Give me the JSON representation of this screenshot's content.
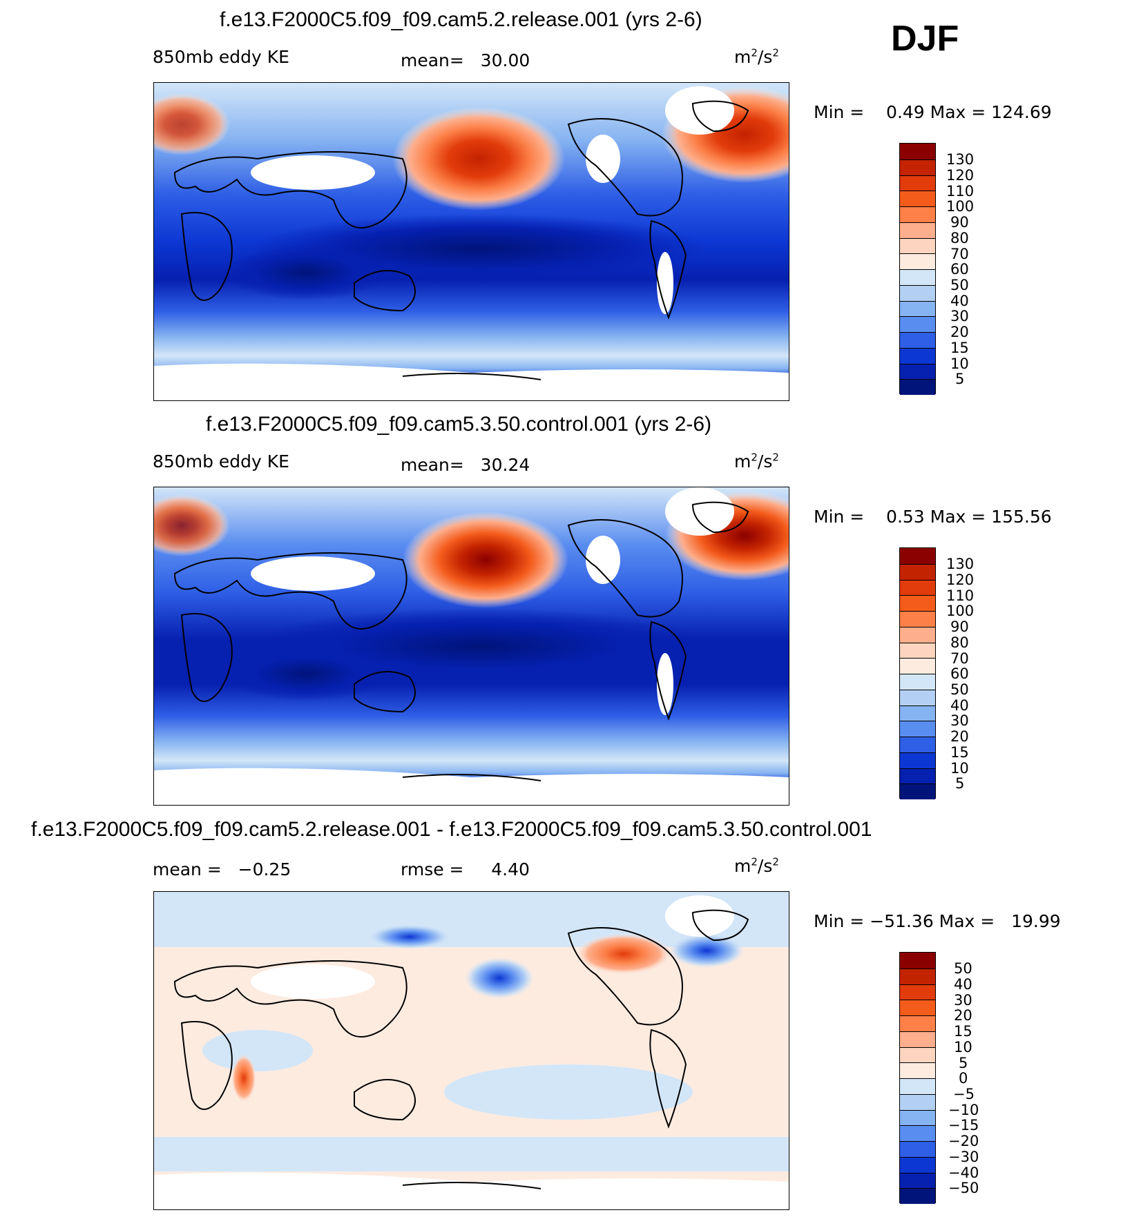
{
  "season": "DJF",
  "panels": [
    {
      "title": "f.e13.F2000C5.f09_f09.cam5.2.release.001 (yrs 2-6)",
      "left_label": "850mb eddy KE",
      "mid_label": "mean=   30.00",
      "units_base": "m",
      "units_sup1": "2",
      "units_mid": "/s",
      "units_sup2": "2",
      "minmax": "Min =    0.49 Max = 124.69",
      "colorbar_labels": [
        "130",
        "120",
        "110",
        "100",
        "90",
        "80",
        "70",
        "60",
        "50",
        "40",
        "30",
        "20",
        "15",
        "10",
        "5"
      ]
    },
    {
      "title": "f.e13.F2000C5.f09_f09.cam5.3.50.control.001 (yrs 2-6)",
      "left_label": "850mb eddy KE",
      "mid_label": "mean=   30.24",
      "units_base": "m",
      "units_sup1": "2",
      "units_mid": "/s",
      "units_sup2": "2",
      "minmax": "Min =    0.53 Max = 155.56",
      "colorbar_labels": [
        "130",
        "120",
        "110",
        "100",
        "90",
        "80",
        "70",
        "60",
        "50",
        "40",
        "30",
        "20",
        "15",
        "10",
        "5"
      ]
    },
    {
      "title": "f.e13.F2000C5.f09_f09.cam5.2.release.001 - f.e13.F2000C5.f09_f09.cam5.3.50.control.001",
      "left_label": "mean =   −0.25",
      "mid_label": "rmse =     4.40",
      "units_base": "m",
      "units_sup1": "2",
      "units_mid": "/s",
      "units_sup2": "2",
      "minmax": "Min = −51.36 Max =   19.99",
      "colorbar_labels": [
        "50",
        "40",
        "30",
        "20",
        "15",
        "10",
        "5",
        "0",
        "−5",
        "−10",
        "−15",
        "−20",
        "−30",
        "−40",
        "−50"
      ]
    }
  ],
  "colors": {
    "abs_scale": [
      "#8b0000",
      "#c42300",
      "#e23c0c",
      "#f45c1c",
      "#fc8048",
      "#fdae8c",
      "#fcd4bf",
      "#fdebe0",
      "#d3e6f8",
      "#b3d0f4",
      "#86b3f1",
      "#5a8df0",
      "#2f5fe6",
      "#0d37d3",
      "#0620b0",
      "#00147a"
    ],
    "diff_scale": [
      "#8b0000",
      "#c42300",
      "#e23c0c",
      "#f45c1c",
      "#fc8048",
      "#fdae8c",
      "#fcd4bf",
      "#fdebe0",
      "#d3e6f8",
      "#b3d0f4",
      "#86b3f1",
      "#5a8df0",
      "#2f5fe6",
      "#0d37d3",
      "#0620b0",
      "#00147a"
    ]
  },
  "chart_data": [
    {
      "type": "heatmap",
      "title": "f.e13.F2000C5.f09_f09.cam5.2.release.001 (yrs 2-6)",
      "variable": "850mb eddy KE",
      "units": "m2/s2",
      "mean": 30.0,
      "min": 0.49,
      "max": 124.69,
      "contour_levels": [
        5,
        10,
        15,
        20,
        30,
        40,
        50,
        60,
        70,
        80,
        90,
        100,
        110,
        120,
        130
      ]
    },
    {
      "type": "heatmap",
      "title": "f.e13.F2000C5.f09_f09.cam5.3.50.control.001 (yrs 2-6)",
      "variable": "850mb eddy KE",
      "units": "m2/s2",
      "mean": 30.24,
      "min": 0.53,
      "max": 155.56,
      "contour_levels": [
        5,
        10,
        15,
        20,
        30,
        40,
        50,
        60,
        70,
        80,
        90,
        100,
        110,
        120,
        130
      ]
    },
    {
      "type": "heatmap",
      "title": "f.e13.F2000C5.f09_f09.cam5.2.release.001 - f.e13.F2000C5.f09_f09.cam5.3.50.control.001",
      "units": "m2/s2",
      "mean": -0.25,
      "rmse": 4.4,
      "min": -51.36,
      "max": 19.99,
      "contour_levels": [
        -50,
        -40,
        -30,
        -20,
        -15,
        -10,
        -5,
        0,
        5,
        10,
        15,
        20,
        30,
        40,
        50
      ]
    }
  ]
}
